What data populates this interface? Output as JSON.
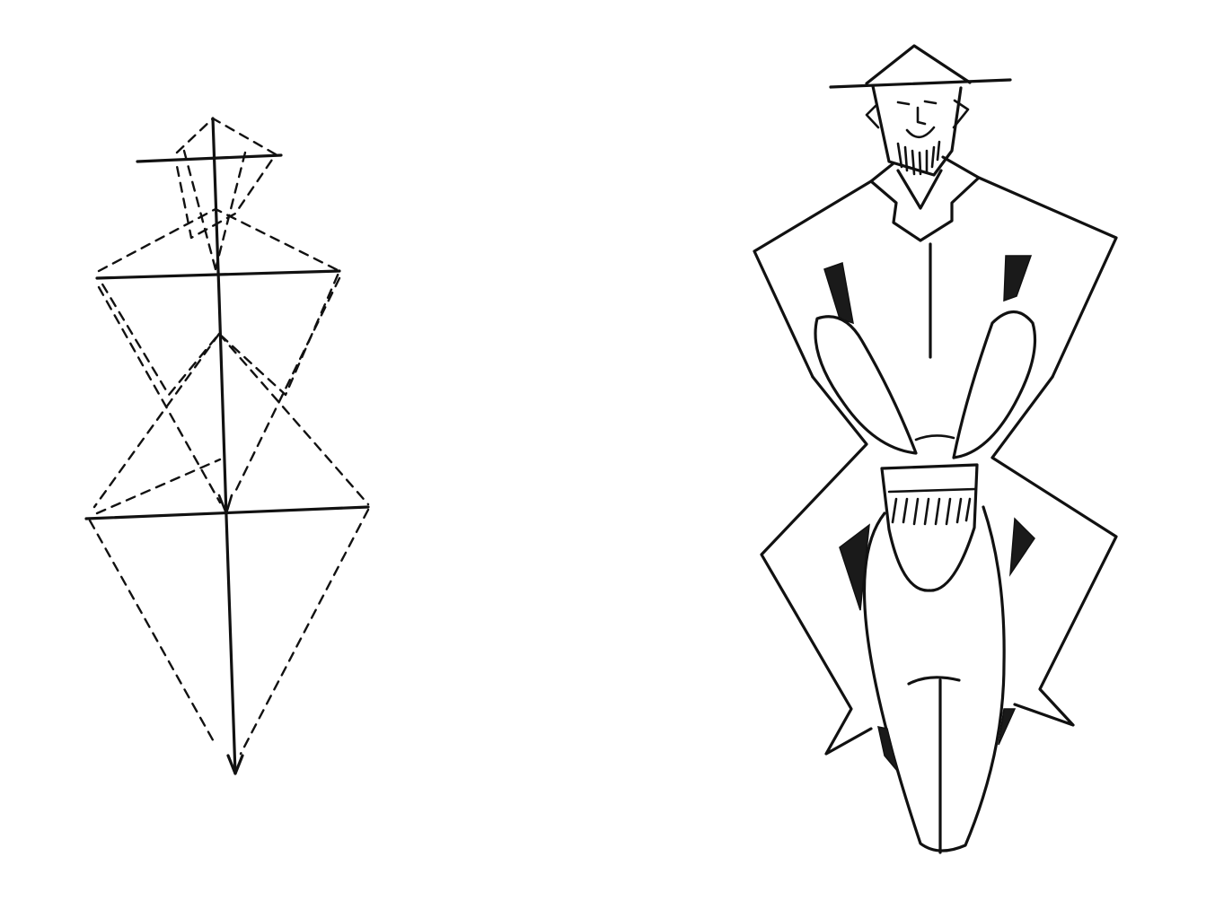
{
  "colors": {
    "ink": "#111111",
    "paper": "#ffffff"
  },
  "figures": [
    {
      "name": "construction-diagram",
      "description_icon": "geometric-construction-icon"
    },
    {
      "name": "rider-on-donkey-drawing",
      "description_icon": "rider-icon"
    }
  ]
}
